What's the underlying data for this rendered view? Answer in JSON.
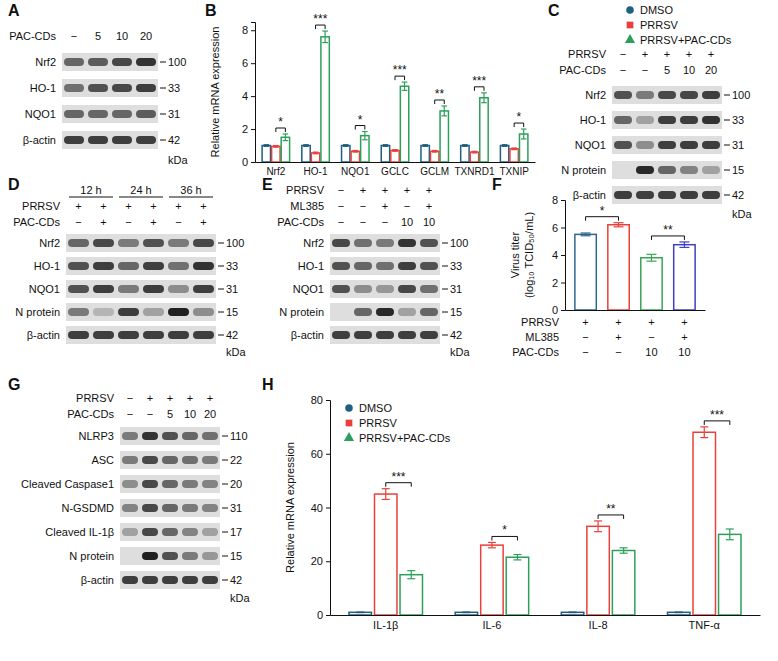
{
  "chart_data": [
    {
      "panel_label": "B",
      "type": "bar",
      "y_label": "Relative mRNA expression",
      "categories": [
        "Nrf2",
        "HO-1",
        "NQO1",
        "GCLC",
        "GCLM",
        "TXNRD1",
        "TXNIP"
      ],
      "series": [
        {
          "name": "DMSO",
          "color": "#1f5f7f",
          "values": [
            1,
            1,
            1,
            1,
            1,
            1,
            1
          ],
          "errors": [
            0.05,
            0.05,
            0.05,
            0.05,
            0.05,
            0.05,
            0.05
          ]
        },
        {
          "name": "PRRSV",
          "color": "#e8413c",
          "values": [
            0.95,
            0.55,
            0.65,
            0.7,
            0.65,
            0.6,
            0.8
          ],
          "errors": [
            0.05,
            0.05,
            0.05,
            0.05,
            0.05,
            0.05,
            0.05
          ]
        },
        {
          "name": "PRRSV+PAC-CDs",
          "color": "#2ca05a",
          "values": [
            1.5,
            7.6,
            1.6,
            4.6,
            3.1,
            3.9,
            1.7
          ],
          "errors": [
            0.2,
            0.35,
            0.25,
            0.25,
            0.3,
            0.3,
            0.3
          ]
        }
      ],
      "annotations": [
        "*",
        "***",
        "*",
        "***",
        "**",
        "***",
        "*"
      ],
      "ylim": [
        0,
        8.5
      ],
      "yticks": [
        0,
        2,
        4,
        6,
        8
      ],
      "legend": "top-right"
    },
    {
      "panel_label": "F",
      "type": "bar",
      "y_label": "Virus titer (log₁₀ TCID₅₀/mL)",
      "categories": [
        null,
        null,
        null,
        null
      ],
      "values": [
        5.5,
        6.2,
        3.8,
        4.75
      ],
      "errors": [
        0.1,
        0.15,
        0.25,
        0.2
      ],
      "colors": [
        "#2f6690",
        "#e8413c",
        "#3aa655",
        "#3f3fbf"
      ],
      "conditions": [
        {
          "label": "PRRSV",
          "values": [
            "+",
            "+",
            "+",
            "+"
          ]
        },
        {
          "label": "ML385",
          "values": [
            "−",
            "+",
            "−",
            "+"
          ]
        },
        {
          "label": "PAC-CDs",
          "values": [
            "−",
            "−",
            "10",
            "10"
          ]
        }
      ],
      "annotations": [
        {
          "text": "*",
          "from": 0,
          "to": 1
        },
        {
          "text": "**",
          "from": 2,
          "to": 3
        }
      ],
      "ylim": [
        0,
        8
      ],
      "yticks": [
        0,
        2,
        4,
        6,
        8
      ]
    },
    {
      "panel_label": "H",
      "type": "bar",
      "y_label": "Relative mRNA expression",
      "categories": [
        "IL-1β",
        "IL-6",
        "IL-8",
        "TNF-α"
      ],
      "series": [
        {
          "name": "DMSO",
          "color": "#1f5f7f",
          "values": [
            1,
            1,
            1,
            1
          ],
          "errors": [
            0.1,
            0.1,
            0.1,
            0.1
          ]
        },
        {
          "name": "PRRSV",
          "color": "#e8413c",
          "values": [
            45,
            26,
            33,
            68
          ],
          "errors": [
            2,
            1,
            2,
            2
          ]
        },
        {
          "name": "PRRSV+PAC-CDs",
          "color": "#2ca05a",
          "values": [
            15,
            21.5,
            24,
            30
          ],
          "errors": [
            1.5,
            1,
            1,
            2
          ]
        }
      ],
      "annotations": [
        "***",
        "*",
        "**",
        "***"
      ],
      "ylim": [
        0,
        80
      ],
      "yticks": [
        0,
        20,
        40,
        60,
        80
      ],
      "legend": "top-left"
    }
  ],
  "blots": [
    {
      "panel_label": "A",
      "unit": "kDa",
      "conditions": [
        {
          "label": "PAC-CDs",
          "values": [
            "−",
            "5",
            "10",
            "20"
          ]
        }
      ],
      "rows": [
        {
          "protein": "Nrf2",
          "kda": 100,
          "intensity": [
            0.6,
            0.65,
            0.75,
            0.85
          ]
        },
        {
          "protein": "HO-1",
          "kda": 33,
          "intensity": [
            0.55,
            0.7,
            0.75,
            0.8
          ]
        },
        {
          "protein": "NQO1",
          "kda": 31,
          "intensity": [
            0.6,
            0.6,
            0.6,
            0.65
          ]
        },
        {
          "protein": "β-actin",
          "kda": 42,
          "intensity": [
            0.8,
            0.8,
            0.8,
            0.8
          ]
        }
      ]
    },
    {
      "panel_label": "C",
      "unit": "kDa",
      "conditions": [
        {
          "label": "PRRSV",
          "values": [
            "−",
            "+",
            "+",
            "+",
            "+"
          ]
        },
        {
          "label": "PAC-CDs",
          "values": [
            "−",
            "−",
            "5",
            "10",
            "20"
          ]
        }
      ],
      "rows": [
        {
          "protein": "Nrf2",
          "kda": 100,
          "intensity": [
            0.7,
            0.5,
            0.75,
            0.75,
            0.8
          ]
        },
        {
          "protein": "HO-1",
          "kda": 33,
          "intensity": [
            0.6,
            0.3,
            0.8,
            0.8,
            0.85
          ]
        },
        {
          "protein": "NQO1",
          "kda": 31,
          "intensity": [
            0.7,
            0.4,
            0.8,
            0.8,
            0.8
          ]
        },
        {
          "protein": "N protein",
          "kda": 15,
          "intensity": [
            0,
            0.9,
            0.6,
            0.45,
            0.3
          ]
        },
        {
          "protein": "β-actin",
          "kda": 42,
          "intensity": [
            0.8,
            0.8,
            0.8,
            0.8,
            0.8
          ]
        }
      ]
    },
    {
      "panel_label": "D",
      "unit": "kDa",
      "lane_groups": [
        {
          "label": "12 h",
          "span": 2
        },
        {
          "label": "24 h",
          "span": 2
        },
        {
          "label": "36 h",
          "span": 2
        }
      ],
      "conditions": [
        {
          "label": "PRRSV",
          "values": [
            "+",
            "+",
            "+",
            "+",
            "+",
            "+"
          ]
        },
        {
          "label": "PAC-CDs",
          "values": [
            "−",
            "+",
            "−",
            "+",
            "−",
            "+"
          ]
        }
      ],
      "rows": [
        {
          "protein": "Nrf2",
          "kda": 100,
          "intensity": [
            0.6,
            0.75,
            0.5,
            0.7,
            0.5,
            0.75
          ]
        },
        {
          "protein": "HO-1",
          "kda": 33,
          "intensity": [
            0.7,
            0.8,
            0.6,
            0.8,
            0.55,
            0.85
          ]
        },
        {
          "protein": "NQO1",
          "kda": 31,
          "intensity": [
            0.7,
            0.8,
            0.5,
            0.8,
            0.4,
            0.8
          ]
        },
        {
          "protein": "N protein",
          "kda": 15,
          "intensity": [
            0.5,
            0.2,
            0.8,
            0.3,
            0.95,
            0.4
          ]
        },
        {
          "protein": "β-actin",
          "kda": 42,
          "intensity": [
            0.8,
            0.8,
            0.8,
            0.8,
            0.8,
            0.8
          ]
        }
      ]
    },
    {
      "panel_label": "E",
      "unit": "kDa",
      "conditions": [
        {
          "label": "PRRSV",
          "values": [
            "−",
            "+",
            "+",
            "+",
            "+"
          ]
        },
        {
          "label": "ML385",
          "values": [
            "−",
            "−",
            "+",
            "−",
            "+"
          ]
        },
        {
          "label": "PAC-CDs",
          "values": [
            "−",
            "−",
            "−",
            "10",
            "10"
          ]
        }
      ],
      "rows": [
        {
          "protein": "Nrf2",
          "kda": 100,
          "intensity": [
            0.75,
            0.55,
            0.5,
            0.85,
            0.7
          ]
        },
        {
          "protein": "HO-1",
          "kda": 33,
          "intensity": [
            0.7,
            0.6,
            0.55,
            0.8,
            0.7
          ]
        },
        {
          "protein": "NQO1",
          "kda": 31,
          "intensity": [
            0.7,
            0.4,
            0.35,
            0.75,
            0.55
          ]
        },
        {
          "protein": "N protein",
          "kda": 15,
          "intensity": [
            0,
            0.6,
            0.9,
            0.3,
            0.6
          ]
        },
        {
          "protein": "β-actin",
          "kda": 42,
          "intensity": [
            0.8,
            0.8,
            0.8,
            0.8,
            0.8
          ]
        }
      ]
    },
    {
      "panel_label": "G",
      "unit": "kDa",
      "conditions": [
        {
          "label": "PRRSV",
          "values": [
            "−",
            "+",
            "+",
            "+",
            "+"
          ]
        },
        {
          "label": "PAC-CDs",
          "values": [
            "−",
            "−",
            "5",
            "10",
            "20"
          ]
        }
      ],
      "rows": [
        {
          "protein": "NLRP3",
          "kda": 110,
          "intensity": [
            0.5,
            0.85,
            0.7,
            0.6,
            0.55
          ]
        },
        {
          "protein": "ASC",
          "kda": 22,
          "intensity": [
            0.5,
            0.75,
            0.6,
            0.55,
            0.5
          ]
        },
        {
          "protein": "Cleaved Caspase1",
          "kda": 20,
          "intensity": [
            0.4,
            0.75,
            0.6,
            0.5,
            0.45
          ]
        },
        {
          "protein": "N-GSDMD",
          "kda": 31,
          "intensity": [
            0.45,
            0.75,
            0.6,
            0.5,
            0.45
          ]
        },
        {
          "protein": "Cleaved IL-1β",
          "kda": 17,
          "intensity": [
            0.3,
            0.75,
            0.6,
            0.45,
            0.3
          ]
        },
        {
          "protein": "N protein",
          "kda": 15,
          "intensity": [
            0,
            0.95,
            0.7,
            0.5,
            0.35
          ]
        },
        {
          "protein": "β-actin",
          "kda": 42,
          "intensity": [
            0.8,
            0.8,
            0.8,
            0.8,
            0.8
          ]
        }
      ]
    }
  ]
}
